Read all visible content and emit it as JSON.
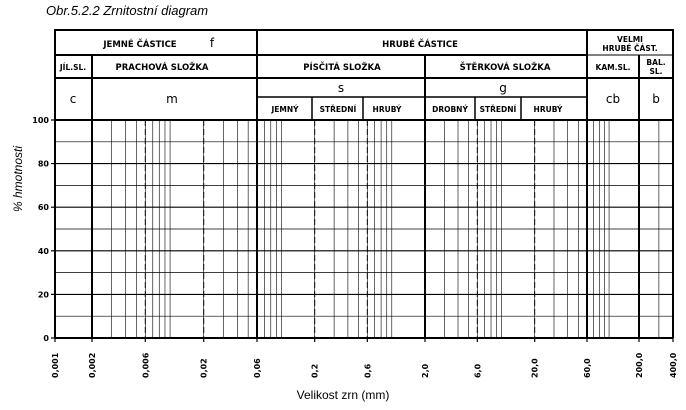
{
  "caption": "Obr.5.2.2 Zrnitostní diagram",
  "chart_data": {
    "type": "line",
    "title": "Obr.5.2.2 Zrnitostní diagram",
    "xlabel": "Velikost zrn (mm)",
    "ylabel": "% hmotnosti",
    "x_scale": "log",
    "xlim": [
      0.001,
      400
    ],
    "ylim": [
      0,
      100
    ],
    "x_ticks": [
      "0,001",
      "0,002",
      "0,006",
      "0,02",
      "0,06",
      "0,2",
      "0,6",
      "2,0",
      "6,0",
      "20,0",
      "60,0",
      "200,0",
      "400,0"
    ],
    "y_ticks": [
      "0",
      "20",
      "40",
      "60",
      "80",
      "100"
    ],
    "series": [],
    "grid": true
  },
  "header": {
    "row1": {
      "fine": "JEMNÉ ČÁSTICE",
      "fine_sym": "f",
      "coarse": "HRUBÉ ČÁSTICE",
      "very_coarse_1": "VELMI",
      "very_coarse_2": "HRUBÉ ČÁST."
    },
    "row2": {
      "clay": "JÍL.SL.",
      "silt": "PRACHOVÁ SLOŽKA",
      "sand": "PÍSČITÁ SLOŽKA",
      "gravel": "ŠTĚRKOVÁ SLOŽKA",
      "cobble": "KAM.SL.",
      "boulder_1": "BAL.",
      "boulder_2": "SL."
    },
    "symbols": {
      "c": "c",
      "m": "m",
      "s": "s",
      "g": "g",
      "cb": "cb",
      "b": "b"
    },
    "sub": {
      "sand_fine": "JEMNÝ",
      "sand_medium": "STŘEDNÍ",
      "sand_coarse": "HRUBÝ",
      "gravel_fine": "DROBNÝ",
      "gravel_medium": "STŘEDNÍ",
      "gravel_coarse": "HRUBÝ"
    }
  }
}
